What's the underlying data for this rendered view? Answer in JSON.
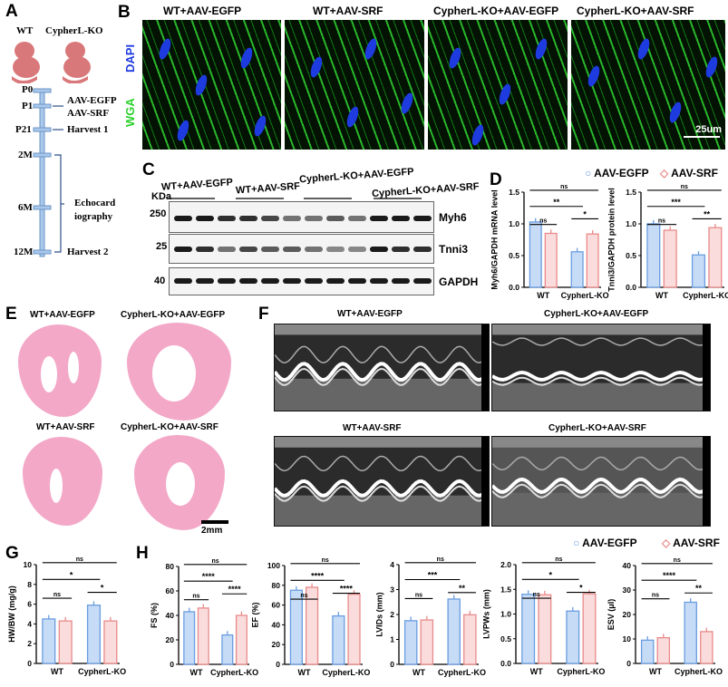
{
  "panels": {
    "A": "A",
    "B": "B",
    "C": "C",
    "D": "D",
    "E": "E",
    "F": "F",
    "G": "G",
    "H": "H"
  },
  "panel_a": {
    "groups": [
      "WT",
      "CypherL-KO"
    ],
    "timepoints": [
      "P0",
      "P1",
      "P21",
      "2M",
      "6M",
      "12M"
    ],
    "events": {
      "injection": [
        "AAV-EGFP",
        "AAV-SRF"
      ],
      "harvest1": "Harvest 1",
      "echo": [
        "Echocard",
        "iography"
      ],
      "harvest2": "Harvest 2"
    }
  },
  "panel_b": {
    "titles": [
      "WT+AAV-EGFP",
      "WT+AAV-SRF",
      "CypherL-KO+AAV-EGFP",
      "CypherL-KO+AAV-SRF"
    ],
    "stains": [
      "DAPI",
      "WGA"
    ],
    "scale_bar": "25um",
    "colors": {
      "dapi": "#1e3be0",
      "wga": "#29b52a"
    }
  },
  "panel_c": {
    "unit": "KDa",
    "groups": [
      "WT+AAV-EGFP",
      "WT+AAV-SRF",
      "CypherL-KO+AAV-EGFP",
      "CypherL-KO+AAV-SRF"
    ],
    "markers": [
      "250",
      "25",
      "40"
    ],
    "proteins": [
      "Myh6",
      "Tnni3",
      "GAPDH"
    ]
  },
  "panel_e": {
    "titles": [
      "WT+AAV-EGFP",
      "CypherL-KO+AAV-EGFP",
      "WT+AAV-SRF",
      "CypherL-KO+AAV-SRF"
    ],
    "scale_bar": "2mm"
  },
  "panel_f": {
    "titles": [
      "WT+AAV-EGFP",
      "CypherL-KO+AAV-EGFP",
      "WT+AAV-SRF",
      "CypherL-KO+AAV-SRF"
    ]
  },
  "legend": {
    "series": [
      "AAV-EGFP",
      "AAV-SRF"
    ],
    "colors": {
      "AAV-EGFP": "#6a9de0",
      "AAV-SRF": "#e88a8a"
    }
  },
  "chart_data": [
    {
      "id": "D1",
      "type": "bar",
      "ylabel": "Myh6/GAPDH mRNA level",
      "categories": [
        "WT",
        "CypherL-KO"
      ],
      "ylim": [
        0,
        1.5
      ],
      "ticks": [
        "0.0",
        "0.5",
        "1.0",
        "1.5"
      ],
      "series": [
        {
          "name": "AAV-EGFP",
          "values": [
            1.03,
            0.56
          ]
        },
        {
          "name": "AAV-SRF",
          "values": [
            0.85,
            0.84
          ]
        }
      ],
      "significance": {
        "wt_pair": "ns",
        "ko_pair": "*",
        "wtegfp_vs_koegfp": "**",
        "wtegfp_vs_kosrf": "ns"
      }
    },
    {
      "id": "D2",
      "type": "bar",
      "ylabel": "Tnni3/GAPDH protein level",
      "categories": [
        "WT",
        "CypherL-KO"
      ],
      "ylim": [
        0,
        1.5
      ],
      "ticks": [
        "0.0",
        "0.5",
        "1.0",
        "1.5"
      ],
      "series": [
        {
          "name": "AAV-EGFP",
          "values": [
            1.0,
            0.51
          ]
        },
        {
          "name": "AAV-SRF",
          "values": [
            0.9,
            0.94
          ]
        }
      ],
      "significance": {
        "wt_pair": "ns",
        "ko_pair": "**",
        "wtegfp_vs_koegfp": "***",
        "wtegfp_vs_kosrf": "ns"
      }
    },
    {
      "id": "G",
      "type": "bar",
      "ylabel": "HW/BW (mg/g)",
      "categories": [
        "WT",
        "CypherL-KO"
      ],
      "ylim": [
        0,
        10
      ],
      "ticks": [
        "0",
        "2",
        "4",
        "6",
        "8",
        "10"
      ],
      "series": [
        {
          "name": "AAV-EGFP",
          "values": [
            4.5,
            5.9
          ]
        },
        {
          "name": "AAV-SRF",
          "values": [
            4.3,
            4.3
          ]
        }
      ],
      "significance": {
        "wt_pair": "ns",
        "ko_pair": "*",
        "wtegfp_vs_koegfp": "*",
        "wtegfp_vs_kosrf": "ns"
      }
    },
    {
      "id": "FS",
      "type": "bar",
      "ylabel": "FS (%)",
      "categories": [
        "WT",
        "CypherL-KO"
      ],
      "ylim": [
        0,
        80
      ],
      "ticks": [
        "0",
        "20",
        "40",
        "60",
        "80"
      ],
      "series": [
        {
          "name": "AAV-EGFP",
          "values": [
            43,
            24
          ]
        },
        {
          "name": "AAV-SRF",
          "values": [
            46,
            40
          ]
        }
      ],
      "significance": {
        "wt_pair": "ns",
        "ko_pair": "****",
        "wtegfp_vs_koegfp": "****",
        "wtegfp_vs_kosrf": "ns"
      }
    },
    {
      "id": "EF",
      "type": "bar",
      "ylabel": "EF (%)",
      "categories": [
        "WT",
        "CypherL-KO"
      ],
      "ylim": [
        0,
        100
      ],
      "ticks": [
        "0",
        "20",
        "40",
        "60",
        "80",
        "100"
      ],
      "series": [
        {
          "name": "AAV-EGFP",
          "values": [
            75,
            49
          ]
        },
        {
          "name": "AAV-SRF",
          "values": [
            78,
            71
          ]
        }
      ],
      "significance": {
        "wt_pair": "ns",
        "ko_pair": "****",
        "wtegfp_vs_koegfp": "****",
        "wtegfp_vs_kosrf": "ns"
      }
    },
    {
      "id": "LVIDs",
      "type": "bar",
      "ylabel": "LVIDs (mm)",
      "categories": [
        "WT",
        "CypherL-KO"
      ],
      "ylim": [
        0,
        4
      ],
      "ticks": [
        "0",
        "1",
        "2",
        "3",
        "4"
      ],
      "series": [
        {
          "name": "AAV-EGFP",
          "values": [
            1.75,
            2.62
          ]
        },
        {
          "name": "AAV-SRF",
          "values": [
            1.78,
            1.99
          ]
        }
      ],
      "significance": {
        "wt_pair": "ns",
        "ko_pair": "**",
        "wtegfp_vs_koegfp": "***",
        "wtegfp_vs_kosrf": "ns"
      }
    },
    {
      "id": "LVPWs",
      "type": "bar",
      "ylabel": "LVPWs (mm)",
      "categories": [
        "WT",
        "CypherL-KO"
      ],
      "ylim": [
        0,
        2
      ],
      "ticks": [
        "0.0",
        "0.5",
        "1.0",
        "1.5",
        "2.0"
      ],
      "series": [
        {
          "name": "AAV-EGFP",
          "values": [
            1.4,
            1.06
          ]
        },
        {
          "name": "AAV-SRF",
          "values": [
            1.39,
            1.41
          ]
        }
      ],
      "significance": {
        "wt_pair": "ns",
        "ko_pair": "*",
        "wtegfp_vs_koegfp": "*",
        "wtegfp_vs_kosrf": "ns"
      }
    },
    {
      "id": "ESV",
      "type": "bar",
      "ylabel": "ESV (μl)",
      "categories": [
        "WT",
        "CypherL-KO"
      ],
      "ylim": [
        0,
        40
      ],
      "ticks": [
        "0",
        "10",
        "20",
        "30",
        "40"
      ],
      "series": [
        {
          "name": "AAV-EGFP",
          "values": [
            9.5,
            25
          ]
        },
        {
          "name": "AAV-SRF",
          "values": [
            10.5,
            13
          ]
        }
      ],
      "significance": {
        "wt_pair": "ns",
        "ko_pair": "**",
        "wtegfp_vs_koegfp": "****",
        "wtegfp_vs_kosrf": "ns"
      }
    }
  ]
}
